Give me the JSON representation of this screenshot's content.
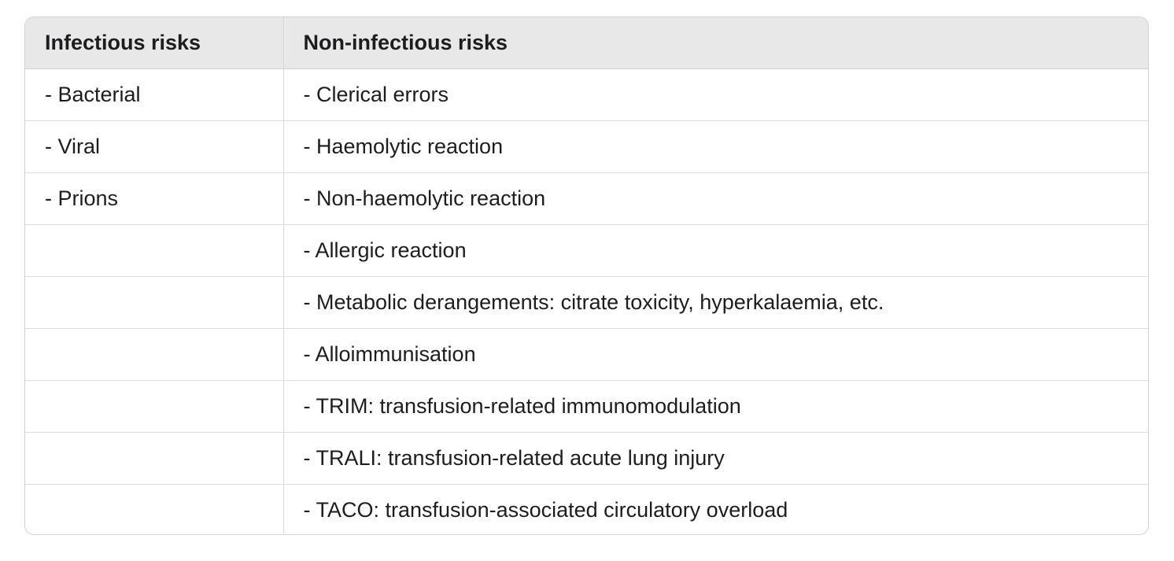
{
  "table": {
    "headers": [
      "Infectious risks",
      "Non-infectious risks"
    ],
    "rows": [
      [
        "- Bacterial",
        "- Clerical errors"
      ],
      [
        "- Viral",
        "- Haemolytic reaction"
      ],
      [
        "- Prions",
        "- Non-haemolytic reaction"
      ],
      [
        "",
        "- Allergic reaction"
      ],
      [
        "",
        "- Metabolic derangements: citrate toxicity, hyperkalaemia, etc."
      ],
      [
        "",
        "- Alloimmunisation"
      ],
      [
        "",
        "- TRIM: transfusion-related immunomodulation"
      ],
      [
        "",
        "- TRALI: transfusion-related acute lung injury"
      ],
      [
        "",
        "- TACO: transfusion-associated circulatory overload"
      ]
    ]
  }
}
